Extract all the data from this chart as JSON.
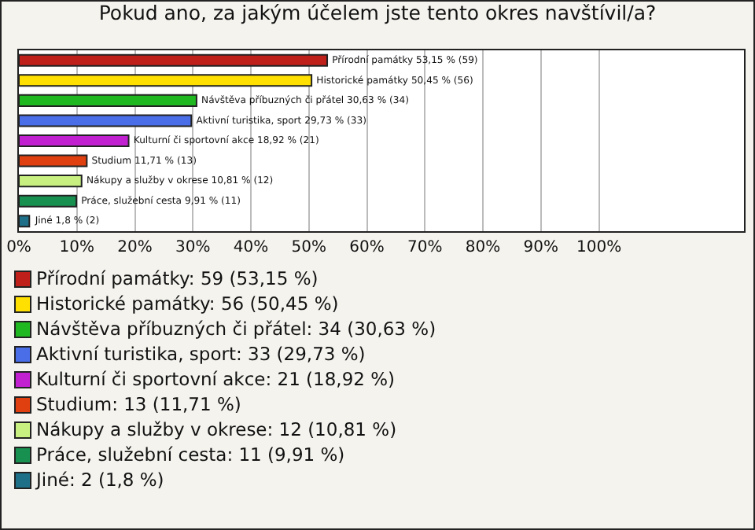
{
  "chart_data": {
    "type": "bar",
    "orientation": "horizontal",
    "title": "Pokud ano, za jakým účelem jste tento okres navštívil/a?",
    "categories": [
      null,
      null,
      null,
      null,
      null,
      null,
      null,
      null,
      null
    ],
    "values": [
      53.15,
      50.45,
      30.63,
      29.73,
      18.92,
      11.71,
      10.81,
      9.91,
      1.8
    ],
    "colors": [
      "#c0201a",
      "#ffe000",
      "#20b820",
      "#4a6ee8",
      "#c020d0",
      "#e04010",
      "#c8f080",
      "#189050",
      "#1e7088"
    ],
    "value_labels": [
      "Přírodní památky 53,15 % (59)",
      "Historické památky 50,45 % (56)",
      "Návštěva příbuzných či přátel 30,63 % (34)",
      "Aktivní turistika, sport 29,73 % (33)",
      "Kulturní či sportovní akce 18,92 % (21)",
      "Studium 11,71 % (13)",
      "Nákupy a služby v okrese 10,81 % (12)",
      "Práce, služební cesta 9,91 % (11)",
      "Jiné 1,8 % (2)"
    ],
    "xlim": [
      0,
      125
    ],
    "xticks": [
      {
        "value": 0,
        "label": "0%"
      },
      {
        "value": 10,
        "label": "10%"
      },
      {
        "value": 20,
        "label": "20%"
      },
      {
        "value": 30,
        "label": "30%"
      },
      {
        "value": 40,
        "label": "40%"
      },
      {
        "value": 50,
        "label": "50%"
      },
      {
        "value": 60,
        "label": "60%"
      },
      {
        "value": 70,
        "label": "70%"
      },
      {
        "value": 80,
        "label": "80%"
      },
      {
        "value": 90,
        "label": "90%"
      },
      {
        "value": 100,
        "label": "100%"
      }
    ],
    "grid": "x",
    "tick_labels": "x",
    "annotations": [
      "Přírodní památky: 59 (53,15 %)",
      "Historické památky: 56 (50,45 %)",
      "Návštěva příbuzných či přátel: 34 (30,63 %)",
      "Aktivní turistika, sport: 33 (29,73 %)",
      "Kulturní či sportovní akce: 21 (18,92 %)",
      "Studium: 13 (11,71 %)",
      "Nákupy a služby v okrese: 12 (10,81 %)",
      "Práce, služební cesta: 11 (9,91 %)",
      "Jiné: 2 (1,8 %)"
    ]
  }
}
